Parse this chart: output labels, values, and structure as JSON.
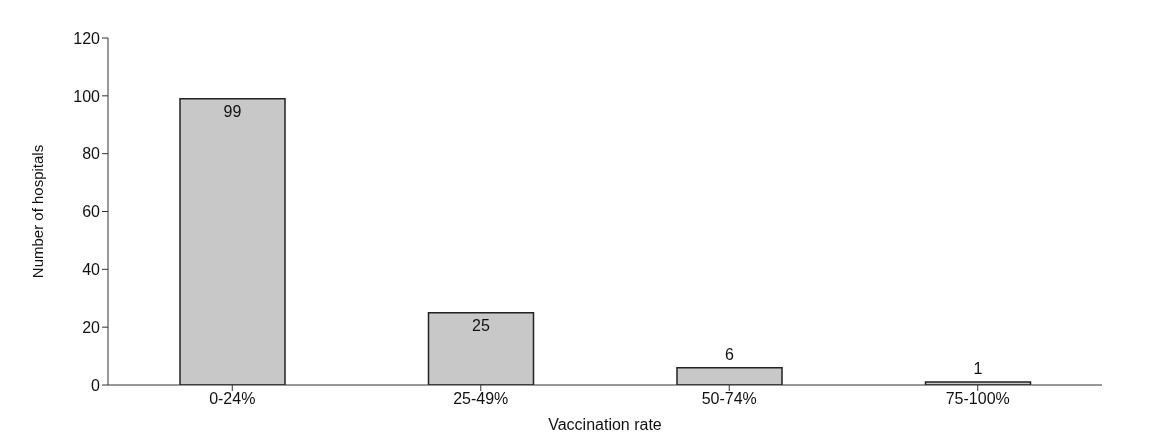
{
  "chart_data": {
    "type": "bar",
    "xlabel": "Vaccination rate",
    "ylabel": "Number of hospitals",
    "categories": [
      "0-24%",
      "25-49%",
      "50-74%",
      "75-100%"
    ],
    "values": [
      99,
      25,
      6,
      1
    ],
    "color": "#c8c8c8",
    "ylim": [
      0,
      120
    ],
    "yticks": [
      0,
      20,
      40,
      60,
      80,
      100,
      120
    ],
    "grid": false,
    "data_labels": true
  }
}
